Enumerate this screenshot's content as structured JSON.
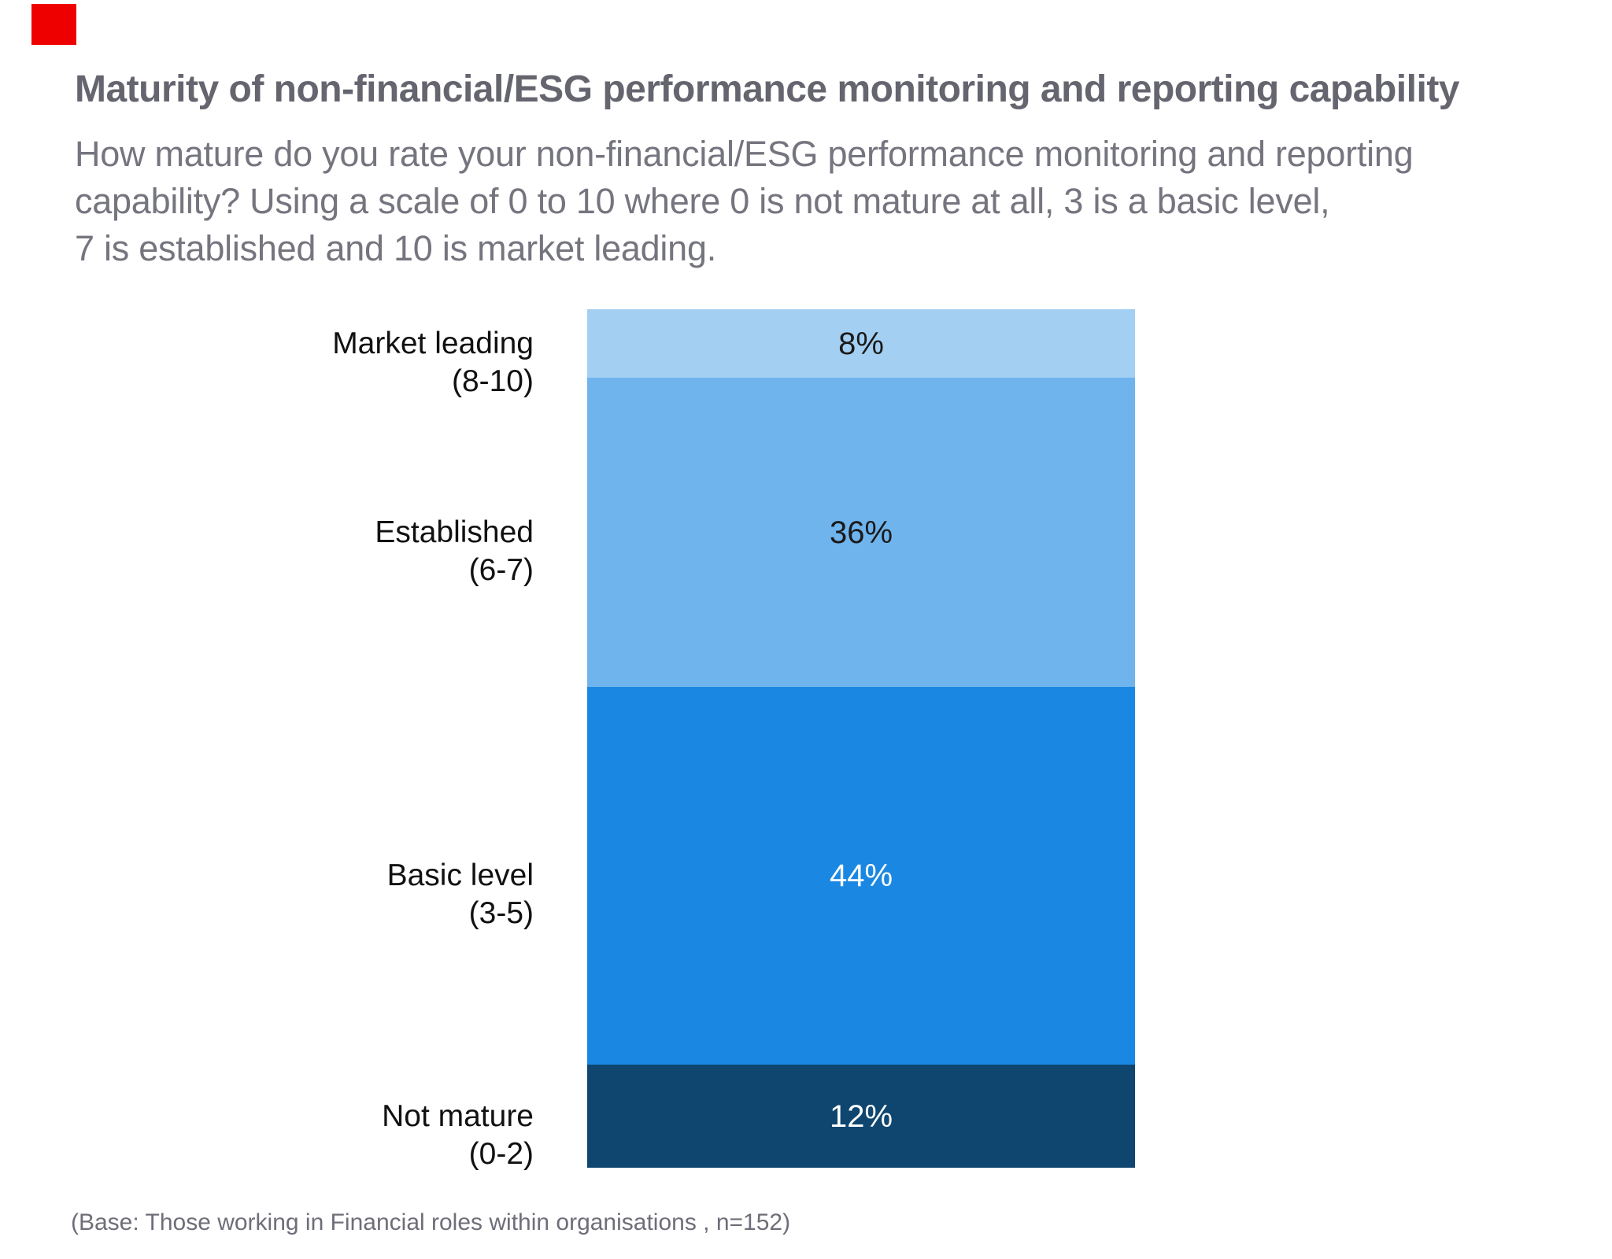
{
  "header": {
    "title": "Maturity of non-financial/ESG performance monitoring and reporting capability",
    "subtitle_lines": [
      "How mature do you rate your non-financial/ESG performance monitoring and reporting",
      "capability? Using a scale of 0 to 10 where 0 is not mature at all, 3 is a basic level,",
      "7 is established and 10 is market leading."
    ]
  },
  "chart_data": {
    "type": "bar",
    "subtype": "single-column 100% stacked, segments top to bottom",
    "title": "Maturity of non-financial/ESG performance monitoring and reporting capability",
    "unit": "%",
    "categories": [
      "Market leading (8-10)",
      "Established (6-7)",
      "Basic level (3-5)",
      "Not mature (0-2)"
    ],
    "values": [
      8,
      36,
      44,
      12
    ],
    "segments": [
      {
        "label": "Market leading",
        "range": "(8-10)",
        "value": 8,
        "value_label": "8%",
        "color": "#A3CFF2",
        "text_color": "#1A1A1A"
      },
      {
        "label": "Established",
        "range": "(6-7)",
        "value": 36,
        "value_label": "36%",
        "color": "#6FB4ED",
        "text_color": "#1A1A1A"
      },
      {
        "label": "Basic level",
        "range": "(3-5)",
        "value": 44,
        "value_label": "44%",
        "color": "#1A88E2",
        "text_color": "#FFFFFF"
      },
      {
        "label": "Not mature",
        "range": "(0-2)",
        "value": 12,
        "value_label": "12%",
        "color": "#0F466F",
        "text_color": "#FFFFFF"
      }
    ],
    "legend": "none",
    "axes": "none (category labels at left of bar, value labels inside segments)"
  },
  "footer": {
    "note": "(Base: Those working in Financial roles within organisations , n=152)"
  },
  "decor": {
    "corner_marker_color": "#EE0000"
  }
}
